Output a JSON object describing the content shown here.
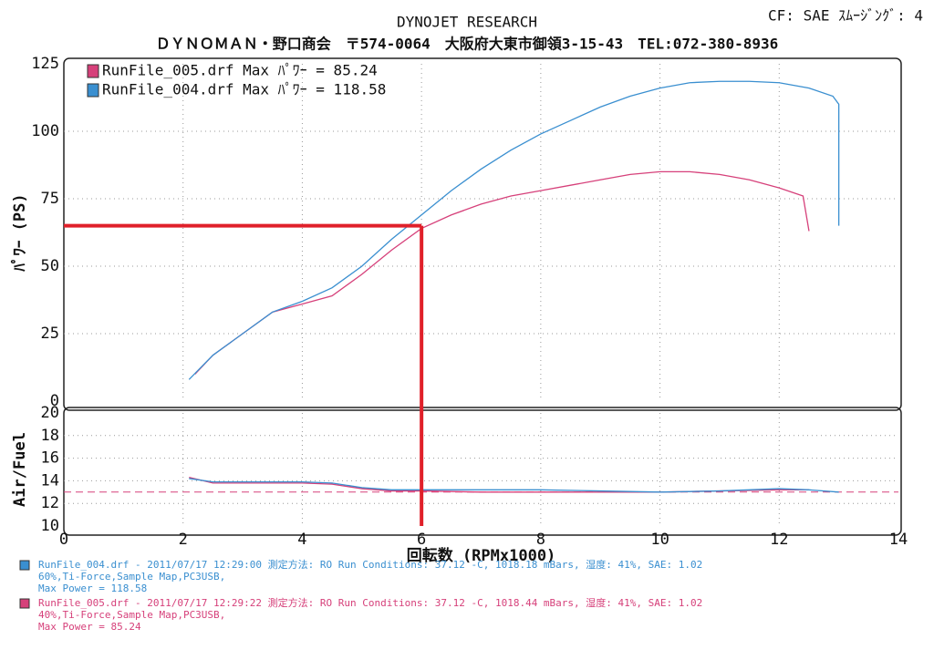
{
  "header": {
    "title": "DYNOJET  RESEARCH",
    "settings": "CF: SAE  ｽﾑｰｼﾞﾝｸﾞ: 4",
    "address": "ＤＹＮＯＭＡＮ・野口商会　〒574-0064　大阪府大東市御領3-15-43　TEL:072-380-8936"
  },
  "chart_data": [
    {
      "type": "line",
      "y_label": "ﾊﾟﾜｰ (PS)",
      "xlim": [
        0,
        14
      ],
      "xticks": [
        0,
        2,
        4,
        6,
        8,
        10,
        12,
        14
      ],
      "ylim": [
        0,
        125
      ],
      "yticks": [
        0,
        25,
        50,
        75,
        100,
        125
      ],
      "grid": true,
      "legend": "top-left",
      "highlight": {
        "x": 6,
        "y": 65,
        "color": "#e0202a"
      },
      "series": [
        {
          "name": "RunFile_005.drf Max ﾊﾟﾜｰ = 85.24",
          "color": "#d6407a",
          "x": [
            2.2,
            2.5,
            3,
            3.5,
            4,
            4.5,
            5,
            5.5,
            6,
            6.5,
            7,
            7.5,
            8,
            8.5,
            9,
            9.5,
            10,
            10.5,
            11,
            11.5,
            12,
            12.4,
            12.5
          ],
          "values": [
            10,
            17,
            25,
            33,
            36,
            39,
            47,
            56,
            64,
            69,
            73,
            76,
            78,
            80,
            82,
            84,
            85,
            85,
            84,
            82,
            79,
            76,
            63
          ]
        },
        {
          "name": "RunFile_004.drf Max ﾊﾟﾜｰ = 118.58",
          "color": "#3a8fd0",
          "x": [
            2.1,
            2.5,
            3,
            3.5,
            4,
            4.5,
            5,
            5.5,
            6,
            6.5,
            7,
            7.5,
            8,
            8.5,
            9,
            9.5,
            10,
            10.5,
            11,
            11.5,
            12,
            12.5,
            12.9,
            13,
            13
          ],
          "values": [
            8,
            17,
            25,
            33,
            37,
            42,
            50,
            60,
            69,
            78,
            86,
            93,
            99,
            104,
            109,
            113,
            116,
            118,
            118.5,
            118.5,
            118,
            116,
            113,
            110,
            65
          ]
        }
      ]
    },
    {
      "type": "line",
      "y_label": "Air/Fuel",
      "x_label": "回転数 (RPMx1000)",
      "xlim": [
        0,
        14
      ],
      "xticks": [
        0,
        2,
        4,
        6,
        8,
        10,
        12,
        14
      ],
      "ylim": [
        10,
        20
      ],
      "yticks": [
        10,
        12,
        14,
        16,
        18,
        20
      ],
      "grid": true,
      "target": {
        "value": 13,
        "color": "#d6407a"
      },
      "series": [
        {
          "color": "#d6407a",
          "x": [
            2.1,
            2.5,
            3,
            4,
            4.5,
            5,
            5.5,
            6,
            7,
            8,
            9,
            10,
            11,
            12,
            12.5
          ],
          "values": [
            14.3,
            13.8,
            13.8,
            13.8,
            13.7,
            13.3,
            13.1,
            13.1,
            13.0,
            13.0,
            13.0,
            13.0,
            13.1,
            13.2,
            13.2
          ]
        },
        {
          "color": "#3a8fd0",
          "x": [
            2.1,
            2.5,
            3,
            4,
            4.5,
            5,
            5.5,
            6,
            7,
            8,
            9,
            10,
            11,
            12,
            12.5,
            13
          ],
          "values": [
            14.2,
            13.9,
            13.9,
            13.9,
            13.8,
            13.4,
            13.2,
            13.2,
            13.2,
            13.2,
            13.1,
            13.0,
            13.1,
            13.3,
            13.2,
            13.0
          ]
        }
      ]
    }
  ],
  "notes": [
    {
      "color": "#3a8fd0",
      "lines": [
        "RunFile_004.drf - 2011/07/17 12:29:00  測定方法: RO  Run Conditions: 37.12 -C, 1018.18 mBars,  湿度: 41%, SAE: 1.02",
        "60%,Ti-Force,Sample Map,PC3USB,",
        "Max Power = 118.58"
      ]
    },
    {
      "color": "#d6407a",
      "lines": [
        "RunFile_005.drf - 2011/07/17 12:29:22  測定方法: RO  Run Conditions: 37.12 -C, 1018.44 mBars,  湿度: 41%, SAE: 1.02",
        "40%,Ti-Force,Sample Map,PC3USB,",
        "Max Power = 85.24"
      ]
    }
  ]
}
